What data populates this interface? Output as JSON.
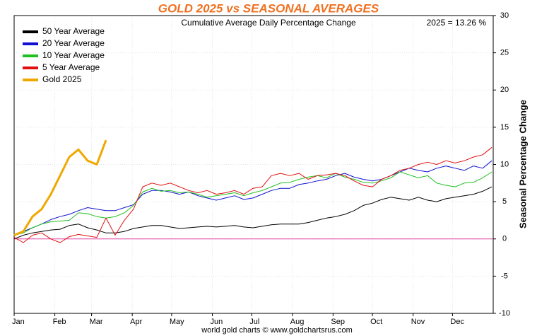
{
  "chart_data": {
    "type": "line",
    "title": "GOLD 2025 vs SEASONAL AVERAGES",
    "subtitle": "Cumulative Average Daily Percentage Change",
    "annotation": "2025 = 13.26 %",
    "y_label": "Seasonal Percentage Change",
    "footer": "world gold charts © www.goldchartsrus.com",
    "xlim": [
      0,
      365
    ],
    "xticks": [
      {
        "value": 0,
        "label": "Jan"
      },
      {
        "value": 31,
        "label": "Feb"
      },
      {
        "value": 59,
        "label": "Mar"
      },
      {
        "value": 90,
        "label": "Apr"
      },
      {
        "value": 120,
        "label": "May"
      },
      {
        "value": 151,
        "label": "Jun"
      },
      {
        "value": 181,
        "label": "Jul"
      },
      {
        "value": 212,
        "label": "Aug"
      },
      {
        "value": 243,
        "label": "Sep"
      },
      {
        "value": 273,
        "label": "Oct"
      },
      {
        "value": 304,
        "label": "Nov"
      },
      {
        "value": 334,
        "label": "Dec"
      }
    ],
    "ylim": [
      -10,
      30
    ],
    "yticks": [
      -10,
      -5,
      0,
      5,
      10,
      15,
      20,
      25,
      30
    ],
    "grid": true,
    "zero_line_color": "#e040a0",
    "legend": "upper left",
    "x": [
      0,
      7,
      14,
      21,
      28,
      35,
      42,
      49,
      56,
      63,
      70,
      77,
      84,
      91,
      98,
      105,
      112,
      119,
      126,
      133,
      140,
      147,
      154,
      161,
      168,
      175,
      182,
      189,
      196,
      203,
      210,
      217,
      224,
      231,
      238,
      245,
      252,
      259,
      266,
      273,
      280,
      287,
      294,
      301,
      308,
      315,
      322,
      329,
      336,
      343,
      350,
      357,
      364
    ],
    "series": [
      {
        "name": "50 Year Average",
        "color": "#000000",
        "width": 1,
        "legend_width": 4,
        "values": [
          0,
          0.5,
          0.8,
          1.0,
          1.2,
          1.3,
          1.8,
          2.0,
          1.5,
          1.2,
          0.8,
          0.8,
          1.0,
          1.4,
          1.6,
          1.8,
          1.8,
          1.6,
          1.4,
          1.5,
          1.6,
          1.7,
          1.6,
          1.7,
          1.8,
          1.6,
          1.5,
          1.7,
          1.9,
          2.0,
          2.0,
          2.0,
          2.2,
          2.5,
          2.8,
          3.0,
          3.3,
          3.8,
          4.5,
          4.8,
          5.3,
          5.6,
          5.4,
          5.2,
          5.6,
          5.2,
          5.0,
          5.4,
          5.6,
          5.8,
          6.0,
          6.4,
          7.0
        ]
      },
      {
        "name": "20 Year Average",
        "color": "#1010d0",
        "width": 1,
        "legend_width": 4,
        "values": [
          0.5,
          1.0,
          1.5,
          2.0,
          2.6,
          3.0,
          3.3,
          3.8,
          4.2,
          4.0,
          3.8,
          3.8,
          4.2,
          4.6,
          6.0,
          6.5,
          6.5,
          6.3,
          6.0,
          6.3,
          5.8,
          5.5,
          5.2,
          5.5,
          5.8,
          5.3,
          5.5,
          6.0,
          6.5,
          6.8,
          6.8,
          7.3,
          7.5,
          7.8,
          8.0,
          8.5,
          8.8,
          8.3,
          8.0,
          7.8,
          8.0,
          8.5,
          9.0,
          9.5,
          9.2,
          9.0,
          9.5,
          9.8,
          9.5,
          9.2,
          9.8,
          9.5,
          10.5
        ]
      },
      {
        "name": "10 Year Average",
        "color": "#20c020",
        "width": 1,
        "legend_width": 4,
        "values": [
          0.5,
          0.8,
          1.5,
          2.0,
          2.3,
          2.4,
          2.5,
          3.5,
          3.4,
          3.0,
          2.8,
          3.0,
          3.5,
          4.5,
          6.3,
          6.8,
          6.4,
          6.5,
          6.2,
          6.3,
          6.0,
          5.6,
          5.8,
          6.0,
          6.2,
          5.8,
          6.2,
          6.5,
          7.0,
          7.5,
          7.6,
          8.0,
          8.3,
          8.5,
          8.2,
          8.8,
          8.3,
          8.0,
          7.6,
          7.5,
          7.8,
          8.2,
          9.0,
          8.6,
          8.2,
          8.5,
          7.5,
          7.2,
          7.0,
          7.5,
          7.6,
          8.2,
          9.0
        ]
      },
      {
        "name": "5 Year Average",
        "color": "#e01010",
        "width": 1,
        "legend_width": 4,
        "values": [
          0.2,
          -0.5,
          0.5,
          0.8,
          0.0,
          -0.5,
          0.3,
          0.6,
          0.4,
          0.2,
          2.8,
          0.5,
          2.5,
          4.0,
          7.0,
          7.5,
          7.2,
          7.5,
          7.0,
          6.5,
          6.2,
          6.5,
          6.0,
          6.2,
          6.5,
          6.0,
          6.8,
          7.0,
          8.5,
          8.8,
          8.5,
          8.8,
          8.0,
          8.5,
          8.6,
          8.8,
          8.5,
          7.8,
          7.2,
          7.0,
          8.0,
          8.5,
          9.2,
          9.5,
          10.0,
          10.3,
          10.0,
          10.5,
          10.2,
          10.5,
          11.0,
          11.3,
          12.3
        ]
      },
      {
        "name": "Gold 2025",
        "color": "#f0a800",
        "width": 3,
        "legend_width": 4,
        "values": [
          0.5,
          1.0,
          3.0,
          4.0,
          6.0,
          8.5,
          11.0,
          12.0,
          10.5,
          10.0,
          13.26,
          null,
          null,
          null,
          null,
          null,
          null,
          null,
          null,
          null,
          null,
          null,
          null,
          null,
          null,
          null,
          null,
          null,
          null,
          null,
          null,
          null,
          null,
          null,
          null,
          null,
          null,
          null,
          null,
          null,
          null,
          null,
          null,
          null,
          null,
          null,
          null,
          null,
          null,
          null,
          null,
          null,
          null
        ]
      }
    ]
  }
}
